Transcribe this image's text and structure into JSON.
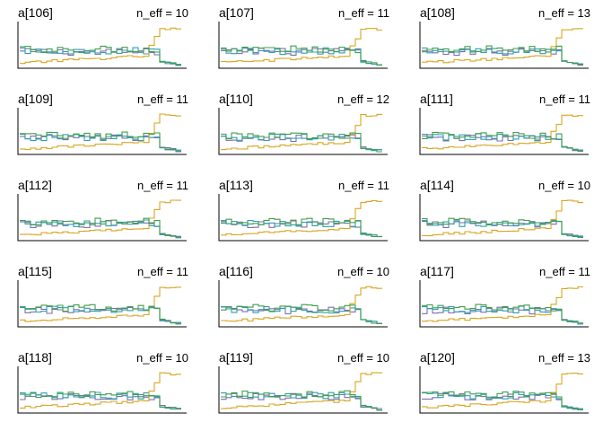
{
  "figure": {
    "type": "trace-rank-histogram-grid",
    "rows": 5,
    "cols": 3,
    "series_colors": [
      "#7b6fb0",
      "#2f9fb0",
      "#d9a521",
      "#3f9e4d"
    ]
  },
  "chart_data": [
    {
      "type": "line",
      "title": "a[106]",
      "annotation": "n_eff = 10",
      "shape": "end-spike"
    },
    {
      "type": "line",
      "title": "a[107]",
      "annotation": "n_eff = 11",
      "shape": "end-spike"
    },
    {
      "type": "line",
      "title": "a[108]",
      "annotation": "n_eff = 13",
      "shape": "end-spike"
    },
    {
      "type": "line",
      "title": "a[109]",
      "annotation": "n_eff = 11",
      "shape": "end-spike"
    },
    {
      "type": "line",
      "title": "a[110]",
      "annotation": "n_eff = 12",
      "shape": "end-spike"
    },
    {
      "type": "line",
      "title": "a[111]",
      "annotation": "n_eff = 11",
      "shape": "end-spike"
    },
    {
      "type": "line",
      "title": "a[112]",
      "annotation": "n_eff = 11",
      "shape": "end-spike"
    },
    {
      "type": "line",
      "title": "a[113]",
      "annotation": "n_eff = 11",
      "shape": "end-spike"
    },
    {
      "type": "line",
      "title": "a[114]",
      "annotation": "n_eff = 10",
      "shape": "end-spike"
    },
    {
      "type": "line",
      "title": "a[115]",
      "annotation": "n_eff = 11",
      "shape": "end-spike"
    },
    {
      "type": "line",
      "title": "a[116]",
      "annotation": "n_eff = 10",
      "shape": "end-spike"
    },
    {
      "type": "line",
      "title": "a[117]",
      "annotation": "n_eff = 11",
      "shape": "end-spike"
    },
    {
      "type": "line",
      "title": "a[118]",
      "annotation": "n_eff = 10",
      "shape": "end-spike"
    },
    {
      "type": "line",
      "title": "a[119]",
      "annotation": "n_eff = 10",
      "shape": "end-spike"
    },
    {
      "type": "line",
      "title": "a[120]",
      "annotation": "n_eff = 13",
      "shape": "end-spike"
    }
  ]
}
